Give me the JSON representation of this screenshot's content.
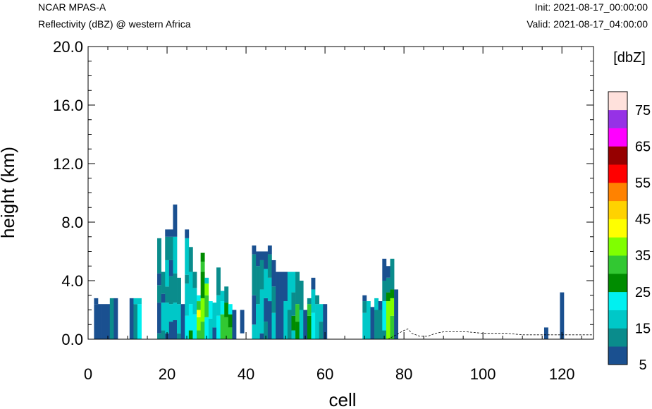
{
  "header": {
    "model": "NCAR MPAS-A",
    "field": "Reflectivity (dBZ) @ western Africa",
    "init": "Init: 2021-08-17_00:00:00",
    "valid": "Valid: 2021-08-17_04:00:00"
  },
  "chart_data": {
    "type": "heatmap",
    "xlabel": "cell",
    "ylabel": "height (km)",
    "xlim": [
      0,
      128
    ],
    "ylim": [
      0,
      20
    ],
    "x_ticks": [
      0,
      20,
      40,
      60,
      80,
      100,
      120
    ],
    "y_ticks": [
      "0.0",
      "4.0",
      "8.0",
      "12.0",
      "16.0",
      "20.0"
    ],
    "colorbar": {
      "title": "[dbZ]",
      "levels": [
        5,
        10,
        15,
        20,
        25,
        30,
        35,
        40,
        45,
        50,
        55,
        60,
        65,
        70,
        75,
        80
      ],
      "tick_labels": [
        "5",
        "15",
        "25",
        "35",
        "45",
        "55",
        "65",
        "75"
      ],
      "colors": [
        "#1a5090",
        "#0a8c8c",
        "#00c8c8",
        "#00f0f0",
        "#008c00",
        "#32c832",
        "#80ff00",
        "#ffff00",
        "#ffd200",
        "#ff8200",
        "#ff0000",
        "#960000",
        "#ff00ff",
        "#9632e6",
        "#ffe1dc"
      ]
    },
    "grid": false,
    "columns": [
      {
        "x": 2,
        "top": 2.8,
        "c": [
          [
            0,
            2.4,
            0
          ],
          [
            2.4,
            2.8,
            0
          ]
        ]
      },
      {
        "x": 3,
        "top": 2.4,
        "c": [
          [
            0,
            2.4,
            0
          ]
        ]
      },
      {
        "x": 4,
        "top": 2.4,
        "c": [
          [
            0,
            2.4,
            0
          ]
        ]
      },
      {
        "x": 5,
        "top": 2.4,
        "c": [
          [
            0,
            2.4,
            0
          ]
        ]
      },
      {
        "x": 6,
        "top": 2.8,
        "c": [
          [
            0,
            2.8,
            1
          ]
        ]
      },
      {
        "x": 7,
        "top": 2.8,
        "c": [
          [
            0,
            2.8,
            0
          ]
        ]
      },
      {
        "x": 11,
        "top": 2.8,
        "c": [
          [
            0,
            2.8,
            0
          ]
        ]
      },
      {
        "x": 12,
        "top": 2.8,
        "c": [
          [
            0,
            2.4,
            1
          ],
          [
            2.4,
            2.8,
            2
          ]
        ]
      },
      {
        "x": 13,
        "top": 2.8,
        "c": [
          [
            0,
            2.4,
            3
          ],
          [
            2.4,
            2.8,
            2
          ]
        ]
      },
      {
        "x": 18,
        "top": 6.9,
        "c": [
          [
            0,
            0.4,
            1
          ],
          [
            0.4,
            2.5,
            0
          ],
          [
            2.5,
            3.7,
            1
          ],
          [
            3.7,
            4.5,
            0
          ],
          [
            4.5,
            6.9,
            1
          ]
        ]
      },
      {
        "x": 19,
        "top": 4.6,
        "c": [
          [
            0,
            0.6,
            1
          ],
          [
            0.6,
            2.5,
            2
          ],
          [
            2.5,
            3.1,
            0
          ],
          [
            3.1,
            4.6,
            1
          ]
        ]
      },
      {
        "x": 20,
        "top": 7.5,
        "c": [
          [
            0,
            0.4,
            0
          ],
          [
            0.4,
            2.5,
            2
          ],
          [
            2.5,
            3.6,
            1
          ],
          [
            3.6,
            5.4,
            2
          ],
          [
            5.4,
            7,
            1
          ],
          [
            7,
            7.5,
            0
          ]
        ]
      },
      {
        "x": 21,
        "top": 7.5,
        "c": [
          [
            0,
            1.2,
            0
          ],
          [
            1.2,
            2.4,
            2
          ],
          [
            2.4,
            4.3,
            1
          ],
          [
            4.3,
            5.4,
            0
          ],
          [
            5.4,
            7,
            1
          ],
          [
            7,
            7.5,
            0
          ]
        ]
      },
      {
        "x": 22,
        "top": 9.2,
        "c": [
          [
            0,
            1.3,
            0
          ],
          [
            1.3,
            2.5,
            2
          ],
          [
            2.5,
            4.5,
            1
          ],
          [
            4.5,
            7,
            2
          ],
          [
            7,
            9.2,
            0
          ]
        ]
      },
      {
        "x": 23,
        "top": 4.2,
        "c": [
          [
            0,
            0.4,
            1
          ],
          [
            0.4,
            2.4,
            2
          ],
          [
            2.4,
            4.2,
            1
          ]
        ]
      },
      {
        "x": 24,
        "top": 2.4,
        "c": [
          [
            0,
            2.4,
            0
          ]
        ]
      },
      {
        "x": 25,
        "top": 7.5,
        "c": [
          [
            0,
            1.6,
            3
          ],
          [
            1.6,
            3.8,
            2
          ],
          [
            3.8,
            4.4,
            1
          ],
          [
            4.4,
            6.9,
            2
          ],
          [
            6.9,
            7.5,
            0
          ]
        ]
      },
      {
        "x": 26,
        "top": 6.3,
        "c": [
          [
            0,
            0.6,
            4
          ],
          [
            0.6,
            2.4,
            3
          ],
          [
            2.4,
            4.6,
            2
          ],
          [
            4.6,
            6.3,
            1
          ]
        ]
      },
      {
        "x": 27,
        "top": 4.6,
        "c": [
          [
            0,
            1.7,
            3
          ],
          [
            1.7,
            3.5,
            2
          ],
          [
            3.5,
            4.6,
            1
          ]
        ]
      },
      {
        "x": 28,
        "top": 3.0,
        "c": [
          [
            0,
            0.6,
            5
          ],
          [
            0.6,
            1.5,
            6
          ],
          [
            1.5,
            2.0,
            7
          ],
          [
            2.0,
            2.6,
            5
          ],
          [
            2.6,
            3.0,
            3
          ]
        ]
      },
      {
        "x": 29,
        "top": 5.9,
        "c": [
          [
            0,
            1.2,
            5
          ],
          [
            1.2,
            2.8,
            6
          ],
          [
            2.8,
            4.6,
            4
          ],
          [
            4.6,
            5.3,
            5
          ],
          [
            5.3,
            5.9,
            4
          ]
        ]
      },
      {
        "x": 30,
        "top": 4.2,
        "c": [
          [
            0,
            1.5,
            3
          ],
          [
            1.5,
            3.0,
            5
          ],
          [
            3.0,
            3.8,
            6
          ],
          [
            3.8,
            4.2,
            2
          ]
        ]
      },
      {
        "x": 31,
        "top": 2.6,
        "c": [
          [
            0,
            1.4,
            2
          ],
          [
            1.4,
            2.6,
            3
          ]
        ]
      },
      {
        "x": 32,
        "top": 2.5,
        "c": [
          [
            0,
            0.8,
            0
          ],
          [
            0.8,
            2.5,
            2
          ]
        ]
      },
      {
        "x": 33,
        "top": 4.9,
        "c": [
          [
            0,
            1.6,
            3
          ],
          [
            1.6,
            3.0,
            2
          ],
          [
            3.0,
            4.9,
            1
          ]
        ]
      },
      {
        "x": 34,
        "top": 3.3,
        "c": [
          [
            0,
            1.7,
            5
          ],
          [
            1.7,
            2.6,
            3
          ],
          [
            2.6,
            3.3,
            2
          ]
        ]
      },
      {
        "x": 35,
        "top": 3.6,
        "c": [
          [
            0,
            1.5,
            5
          ],
          [
            1.5,
            2.5,
            4
          ],
          [
            2.5,
            3.6,
            1
          ]
        ]
      },
      {
        "x": 36,
        "top": 2.4,
        "c": [
          [
            0,
            0.8,
            5
          ],
          [
            0.8,
            1.7,
            4
          ],
          [
            1.7,
            2.4,
            3
          ]
        ]
      },
      {
        "x": 37,
        "top": 2.0,
        "c": [
          [
            0,
            2.0,
            0
          ]
        ]
      },
      {
        "x": 39,
        "top": 2.0,
        "c": [
          [
            0.4,
            2.0,
            0
          ]
        ]
      },
      {
        "x": 42,
        "top": 6.4,
        "c": [
          [
            0,
            1.0,
            2
          ],
          [
            1.0,
            3.0,
            0
          ],
          [
            3.0,
            5.8,
            1
          ],
          [
            5.8,
            6.4,
            0
          ]
        ]
      },
      {
        "x": 43,
        "top": 6.0,
        "c": [
          [
            0,
            2.4,
            2
          ],
          [
            2.4,
            5.0,
            1
          ],
          [
            5.0,
            6.0,
            0
          ]
        ]
      },
      {
        "x": 44,
        "top": 6.0,
        "c": [
          [
            0,
            0.4,
            0
          ],
          [
            0.4,
            3.4,
            2
          ],
          [
            3.4,
            5.4,
            1
          ],
          [
            5.4,
            6.0,
            0
          ]
        ]
      },
      {
        "x": 45,
        "top": 6.0,
        "c": [
          [
            0,
            1.2,
            1
          ],
          [
            1.2,
            2.8,
            0
          ],
          [
            2.8,
            4.8,
            2
          ],
          [
            4.8,
            6.0,
            0
          ]
        ]
      },
      {
        "x": 46,
        "top": 6.4,
        "c": [
          [
            0,
            2.6,
            0
          ],
          [
            2.6,
            4.2,
            2
          ],
          [
            4.2,
            5.8,
            1
          ],
          [
            5.8,
            6.4,
            0
          ]
        ]
      },
      {
        "x": 47,
        "top": 5.4,
        "c": [
          [
            0,
            1.8,
            2
          ],
          [
            1.8,
            3.6,
            1
          ],
          [
            3.6,
            5.4,
            0
          ]
        ]
      },
      {
        "x": 48,
        "top": 4.6,
        "c": [
          [
            0,
            4.6,
            0
          ]
        ]
      },
      {
        "x": 49,
        "top": 4.6,
        "c": [
          [
            0,
            2.0,
            0
          ],
          [
            2.0,
            4.6,
            0
          ]
        ]
      },
      {
        "x": 50,
        "top": 4.6,
        "c": [
          [
            0,
            2.6,
            2
          ],
          [
            2.6,
            4.6,
            0
          ]
        ]
      },
      {
        "x": 51,
        "top": 4.6,
        "c": [
          [
            0,
            2.0,
            1
          ],
          [
            2.0,
            4.6,
            2
          ]
        ]
      },
      {
        "x": 52,
        "top": 4.6,
        "c": [
          [
            0,
            0.6,
            2
          ],
          [
            0.6,
            1.6,
            4
          ],
          [
            1.6,
            3.2,
            1
          ],
          [
            3.2,
            4.6,
            2
          ]
        ]
      },
      {
        "x": 53,
        "top": 4.6,
        "c": [
          [
            0,
            1.2,
            4
          ],
          [
            1.2,
            2.4,
            5
          ],
          [
            2.4,
            4.6,
            1
          ]
        ]
      },
      {
        "x": 54,
        "top": 4.0,
        "c": [
          [
            0,
            2.0,
            2
          ],
          [
            2.0,
            4.0,
            1
          ]
        ]
      },
      {
        "x": 55,
        "top": 2.0,
        "c": [
          [
            0,
            2.0,
            0
          ]
        ]
      },
      {
        "x": 56,
        "top": 2.8,
        "c": [
          [
            0,
            1.6,
            4
          ],
          [
            1.6,
            2.4,
            5
          ],
          [
            2.4,
            2.8,
            1
          ]
        ]
      },
      {
        "x": 57,
        "top": 4.2,
        "c": [
          [
            0,
            1.8,
            3
          ],
          [
            1.8,
            3.4,
            2
          ],
          [
            3.4,
            4.2,
            0
          ]
        ]
      },
      {
        "x": 58,
        "top": 3.0,
        "c": [
          [
            0,
            2.4,
            2
          ],
          [
            2.4,
            3.0,
            1
          ]
        ]
      },
      {
        "x": 59,
        "top": 2.4,
        "c": [
          [
            0,
            1.2,
            1
          ],
          [
            1.2,
            2.4,
            2
          ]
        ]
      },
      {
        "x": 60,
        "top": 2.4,
        "c": [
          [
            0,
            2.4,
            0
          ]
        ]
      },
      {
        "x": 70,
        "top": 3.0,
        "c": [
          [
            0,
            1.8,
            2
          ],
          [
            1.8,
            2.6,
            1
          ],
          [
            2.6,
            3.0,
            0
          ]
        ]
      },
      {
        "x": 71,
        "top": 2.6,
        "c": [
          [
            0,
            2.6,
            2
          ]
        ]
      },
      {
        "x": 72,
        "top": 2.2,
        "c": [
          [
            0,
            2.2,
            0
          ]
        ]
      },
      {
        "x": 73,
        "top": 2.8,
        "c": [
          [
            0,
            2.0,
            1
          ],
          [
            2.0,
            2.8,
            2
          ]
        ]
      },
      {
        "x": 74,
        "top": 2.6,
        "c": [
          [
            0,
            2.0,
            1
          ],
          [
            2.0,
            2.6,
            0
          ]
        ]
      },
      {
        "x": 75,
        "top": 5.5,
        "c": [
          [
            0,
            0.6,
            1
          ],
          [
            0.6,
            2.6,
            3
          ],
          [
            2.6,
            4.0,
            1
          ],
          [
            4.0,
            5.5,
            0
          ]
        ]
      },
      {
        "x": 76,
        "top": 5.0,
        "c": [
          [
            0,
            2.6,
            6
          ],
          [
            2.6,
            3.2,
            4
          ],
          [
            3.2,
            4.2,
            1
          ],
          [
            4.2,
            5.0,
            0
          ]
        ]
      },
      {
        "x": 77,
        "top": 5.5,
        "c": [
          [
            0,
            1.6,
            5
          ],
          [
            1.6,
            2.8,
            6
          ],
          [
            2.8,
            3.4,
            4
          ],
          [
            3.4,
            5.5,
            1
          ]
        ]
      },
      {
        "x": 78,
        "top": 3.4,
        "c": [
          [
            0,
            3.4,
            0
          ]
        ]
      },
      {
        "x": 116,
        "top": 0.8,
        "c": [
          [
            0,
            0.8,
            0
          ]
        ]
      },
      {
        "x": 120,
        "top": 3.2,
        "c": [
          [
            0,
            3.2,
            0
          ]
        ]
      }
    ],
    "terrain": [
      [
        0,
        0
      ],
      [
        76,
        0
      ],
      [
        78,
        0.3
      ],
      [
        80,
        0.6
      ],
      [
        81,
        0.7
      ],
      [
        82,
        0.4
      ],
      [
        84,
        0.2
      ],
      [
        86,
        0.2
      ],
      [
        88,
        0.4
      ],
      [
        90,
        0.5
      ],
      [
        93,
        0.5
      ],
      [
        96,
        0.5
      ],
      [
        100,
        0.4
      ],
      [
        103,
        0.4
      ],
      [
        106,
        0.4
      ],
      [
        110,
        0.3
      ],
      [
        114,
        0.3
      ],
      [
        118,
        0.3
      ],
      [
        122,
        0.3
      ],
      [
        126,
        0.3
      ],
      [
        128,
        0.3
      ]
    ]
  }
}
